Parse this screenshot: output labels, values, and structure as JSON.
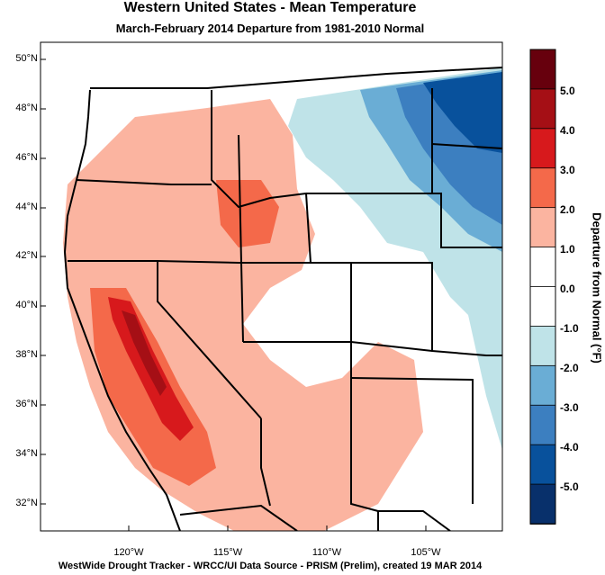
{
  "title": "Western United States - Mean Temperature",
  "subtitle": "March-February 2014  Departure from 1981-2010 Normal",
  "footer": "WestWide Drought Tracker - WRCC/UI  Data Source - PRISM (Prelim), created 19 MAR 2014",
  "lat_ticks": [
    "50°N",
    "48°N",
    "46°N",
    "44°N",
    "42°N",
    "40°N",
    "38°N",
    "36°N",
    "34°N",
    "32°N"
  ],
  "lon_ticks": [
    "120°W",
    "115°W",
    "110°W",
    "105°W"
  ],
  "colorbar": {
    "title": "Departure from Normal (°F)",
    "tick_labels": [
      "5.0",
      "4.0",
      "3.0",
      "2.0",
      "1.0",
      "0.0",
      "-1.0",
      "-2.0",
      "-3.0",
      "-4.0",
      "-5.0"
    ],
    "colors": [
      "#67000d",
      "#a50f15",
      "#d7191c",
      "#f4694a",
      "#fbb4a0",
      "#ffffff",
      "#ffffff",
      "#bfe3e8",
      "#6aadd5",
      "#3c7fc0",
      "#08519c",
      "#08306b"
    ]
  },
  "map_colors": {
    "ocean": "#ffffff",
    "land": "#ffffff",
    "warm_light": "#fbb4a0",
    "warm_mid": "#f4694a",
    "warm_dark": "#d7191c",
    "warm_darkest": "#a50f15",
    "cool_light": "#bfe3e8",
    "cool_mid": "#6aadd5",
    "cool_dark": "#3c7fc0",
    "cool_darkest": "#08519c",
    "borders": "#000000"
  }
}
